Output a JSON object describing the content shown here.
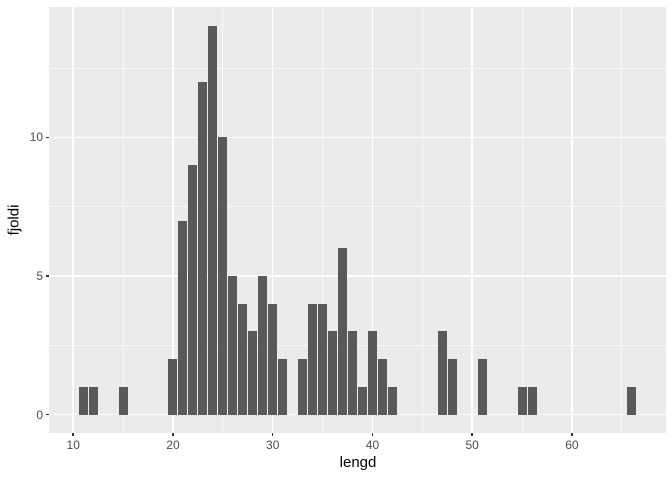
{
  "chart_data": {
    "type": "bar",
    "subtype": "histogram",
    "title": "",
    "xlabel": "lengd",
    "ylabel": "fjoldi",
    "binwidth": 1,
    "x": [
      11,
      12,
      15,
      20,
      21,
      22,
      23,
      24,
      25,
      26,
      27,
      28,
      29,
      30,
      31,
      33,
      34,
      35,
      36,
      37,
      38,
      39,
      40,
      41,
      42,
      47,
      48,
      51,
      55,
      56,
      66
    ],
    "counts": [
      1,
      1,
      1,
      2,
      7,
      9,
      12,
      14,
      10,
      5,
      4,
      3,
      5,
      4,
      2,
      2,
      4,
      4,
      3,
      6,
      3,
      1,
      3,
      2,
      1,
      3,
      2,
      2,
      1,
      1,
      1
    ],
    "x_ticks": [
      10,
      20,
      30,
      40,
      50,
      60
    ],
    "y_ticks": [
      0,
      5,
      10
    ],
    "x_minor_ticks": [
      15,
      25,
      35,
      45,
      55,
      65
    ],
    "y_minor_ticks": [
      2.5,
      7.5,
      12.5
    ],
    "xlim": [
      7.57,
      69.43
    ],
    "ylim": [
      -0.66,
      14.7
    ],
    "grid": "on",
    "legend": "none",
    "colors": {
      "bar": "#595959",
      "panel_background": "#EBEBEB",
      "grid_major": "#FFFFFF",
      "grid_minor": "rgba(255,255,255,0.65)",
      "tick_label": "#4D4D4D",
      "axis_title": "#000000",
      "figure_background": "#FFFFFF"
    }
  }
}
